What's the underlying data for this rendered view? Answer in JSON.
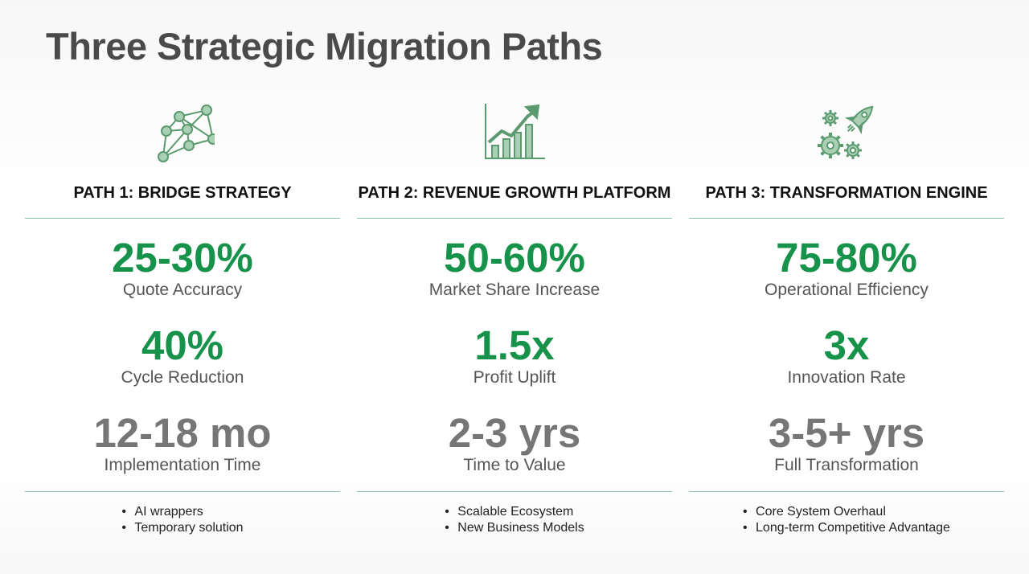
{
  "title": "Three Strategic Migration Paths",
  "colors": {
    "accent_green": "#16924a",
    "icon_green": "#5a9a6e",
    "divider": "#8cc4a6",
    "muted_grey": "#767676",
    "title_grey": "#4a4a4a"
  },
  "paths": [
    {
      "icon": "network-nodes-icon",
      "heading": "PATH 1: BRIDGE STRATEGY",
      "metrics": [
        {
          "value": "25-30%",
          "label": "Quote Accuracy"
        },
        {
          "value": "40%",
          "label": "Cycle Reduction"
        },
        {
          "value": "12-18 mo",
          "label": "Implementation Time"
        }
      ],
      "bullets": [
        "AI wrappers",
        "Temporary solution"
      ]
    },
    {
      "icon": "growth-chart-icon",
      "heading": "PATH 2: REVENUE GROWTH PLATFORM",
      "metrics": [
        {
          "value": "50-60%",
          "label": "Market Share Increase"
        },
        {
          "value": "1.5x",
          "label": "Profit Uplift"
        },
        {
          "value": "2-3 yrs",
          "label": "Time to Value"
        }
      ],
      "bullets": [
        "Scalable Ecosystem",
        "New Business Models"
      ]
    },
    {
      "icon": "rocket-gears-icon",
      "heading": "PATH 3: TRANSFORMATION ENGINE",
      "metrics": [
        {
          "value": "75-80%",
          "label": "Operational Efficiency"
        },
        {
          "value": "3x",
          "label": "Innovation Rate"
        },
        {
          "value": "3-5+ yrs",
          "label": "Full Transformation"
        }
      ],
      "bullets": [
        "Core System Overhaul",
        "Long-term Competitive Advantage"
      ]
    }
  ]
}
